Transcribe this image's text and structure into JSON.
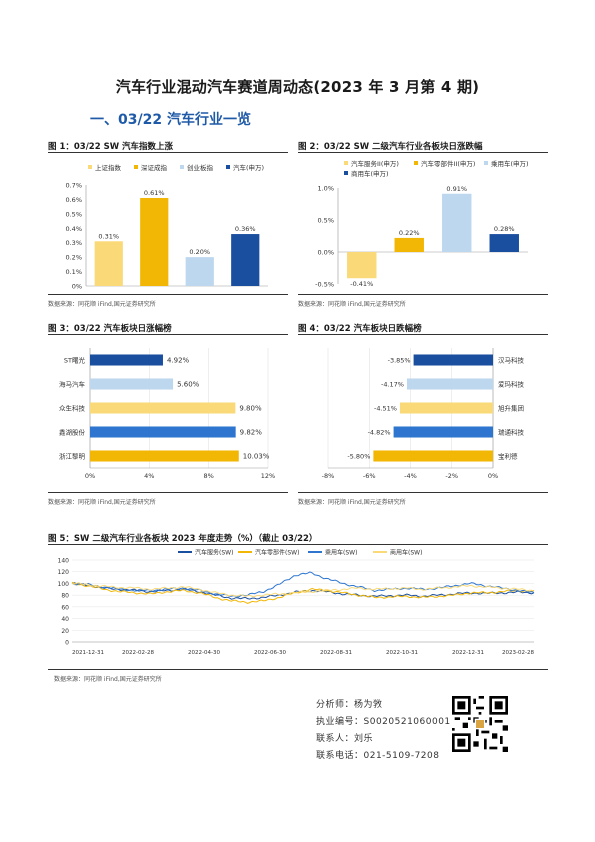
{
  "doc_title": "汽车行业混动汽车赛道周动态(2023 年 3 月第 4 期)",
  "section_title": "一、03/22 汽车行业一览",
  "source_note": "数据来源：同花顺 iFind,国元证券研究所",
  "colors": {
    "yellow": "#FADA78",
    "gold": "#F2B705",
    "lightblue": "#BDD7EE",
    "blue": "#2E75D0",
    "navy": "#1A4FA0",
    "darkblue": "#1F4E9A"
  },
  "fig1": {
    "title": "图 1：03/22 SW 汽车指数上涨",
    "chart_data": {
      "type": "bar",
      "categories": [
        "上证指数",
        "深证成指",
        "创业板指",
        "汽车(申万)"
      ],
      "values": [
        0.31,
        0.61,
        0.2,
        0.36
      ],
      "value_labels": [
        "0.31%",
        "0.61%",
        "0.20%",
        "0.36%"
      ],
      "ylim": [
        0,
        0.7
      ],
      "yticks": [
        "0%",
        "0.1%",
        "0.2%",
        "0.3%",
        "0.4%",
        "0.5%",
        "0.6%",
        "0.7%"
      ],
      "colors": [
        "yellow",
        "gold",
        "lightblue",
        "navy"
      ],
      "legend": "top"
    }
  },
  "fig2": {
    "title": "图 2：03/22 SW 二级汽车行业各板块日涨跌幅",
    "chart_data": {
      "type": "bar",
      "categories": [
        "汽车服务II(申万)",
        "汽车零部件II(申万)",
        "乘用车(申万)",
        "商用车(申万)"
      ],
      "values": [
        -0.41,
        0.22,
        0.91,
        0.28
      ],
      "value_labels": [
        "-0.41%",
        "0.22%",
        "0.91%",
        "0.28%"
      ],
      "ylim": [
        -0.5,
        1.0
      ],
      "yticks": [
        "-0.5%",
        "0.0%",
        "0.5%",
        "1.0%"
      ],
      "colors": [
        "yellow",
        "gold",
        "lightblue",
        "navy"
      ],
      "legend": "top"
    }
  },
  "fig3": {
    "title": "图 3：03/22 汽车板块日涨幅榜",
    "chart_data": {
      "type": "bar",
      "orientation": "horizontal",
      "categories": [
        "ST曙光",
        "海马汽车",
        "众生科技",
        "鑫湖股份",
        "浙江黎明"
      ],
      "values": [
        4.92,
        5.6,
        9.8,
        9.82,
        10.03
      ],
      "value_labels": [
        "4.92%",
        "5.60%",
        "9.80%",
        "9.82%",
        "10.03%"
      ],
      "xlim": [
        0,
        12
      ],
      "xticks": [
        "0%",
        "4%",
        "8%",
        "12%"
      ],
      "colors": [
        "navy",
        "lightblue",
        "yellow",
        "blue",
        "gold"
      ]
    }
  },
  "fig4": {
    "title": "图 4：03/22 汽车板块日跌幅榜",
    "chart_data": {
      "type": "bar",
      "orientation": "horizontal",
      "categories": [
        "汉马科技",
        "爱玛科技",
        "旭升集团",
        "瑞通科技",
        "宝利德"
      ],
      "values": [
        -3.85,
        -4.17,
        -4.51,
        -4.82,
        -5.8
      ],
      "value_labels": [
        "-3.85%",
        "-4.17%",
        "-4.51%",
        "-4.82%",
        "-5.80%"
      ],
      "xlim": [
        -8,
        0
      ],
      "xticks": [
        "-8%",
        "-6%",
        "-4%",
        "-2%",
        "0%"
      ],
      "colors": [
        "navy",
        "lightblue",
        "yellow",
        "blue",
        "gold"
      ]
    }
  },
  "fig5": {
    "title": "图 5：SW 二级汽车行业各板块 2023 年度走势（%）（截止 03/22）",
    "chart_data": {
      "type": "line",
      "series": [
        {
          "name": "汽车服务(SW)",
          "color": "navy",
          "values": [
            100,
            97,
            92,
            90,
            88,
            86,
            88,
            90,
            86,
            80,
            75,
            74,
            76,
            80,
            85,
            88,
            86,
            82,
            80,
            78,
            79,
            80,
            78,
            80,
            82,
            84,
            83,
            84,
            85,
            84
          ]
        },
        {
          "name": "汽车零部件(SW)",
          "color": "gold",
          "values": [
            100,
            96,
            90,
            86,
            84,
            82,
            86,
            88,
            84,
            76,
            70,
            68,
            70,
            76,
            84,
            90,
            88,
            84,
            80,
            76,
            77,
            78,
            76,
            78,
            80,
            84,
            84,
            86,
            88,
            86
          ]
        },
        {
          "name": "乘用车(SW)",
          "color": "blue",
          "values": [
            100,
            98,
            94,
            90,
            88,
            88,
            90,
            92,
            88,
            82,
            78,
            80,
            86,
            98,
            114,
            118,
            108,
            100,
            94,
            88,
            90,
            92,
            90,
            92,
            96,
            100,
            96,
            92,
            88,
            84
          ]
        },
        {
          "name": "商用车(SW)",
          "color": "yellow",
          "values": [
            100,
            98,
            95,
            93,
            92,
            90,
            92,
            94,
            90,
            84,
            80,
            78,
            80,
            82,
            84,
            86,
            88,
            90,
            92,
            90,
            91,
            92,
            90,
            92,
            94,
            96,
            94,
            92,
            90,
            88
          ]
        }
      ],
      "x_tick_labels": [
        "2021-12-31",
        "2022-02-28",
        "2022-04-30",
        "2022-06-30",
        "2022-08-31",
        "2022-10-31",
        "2022-12-31",
        "2023-02-28"
      ],
      "ylim": [
        0,
        140
      ],
      "yticks": [
        "0",
        "20",
        "40",
        "60",
        "80",
        "100",
        "120",
        "140"
      ],
      "legend": "top"
    }
  },
  "analyst": {
    "name_line": "分析师：杨为敩",
    "cert_line": "执业编号：S0020521060001",
    "contact_line": "联系人：刘乐",
    "phone_line": "联系电话：021-5109-7208"
  }
}
